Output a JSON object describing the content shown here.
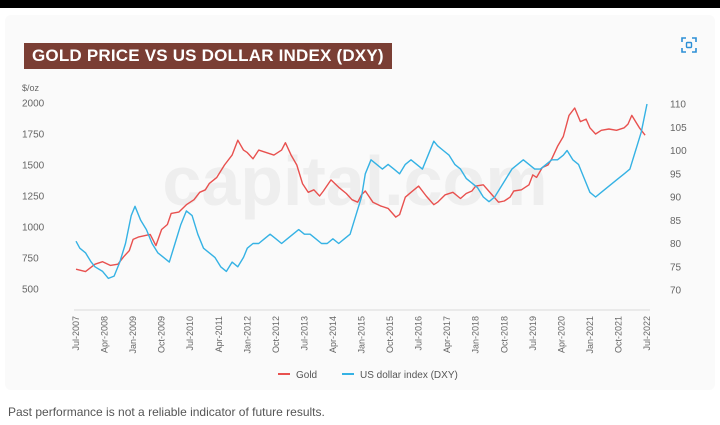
{
  "colors": {
    "gold": "#e8514f",
    "dxy": "#35b2e4",
    "title_bg": "#7a3e34",
    "axis_text": "#666666",
    "watermark": "#e6e6e6"
  },
  "chart_data": {
    "type": "line",
    "title": "GOLD PRICE VS US DOLLAR INDEX (DXY)",
    "left_axis": {
      "unit": "$/oz",
      "ticks": [
        "500",
        "750",
        "1000",
        "1250",
        "1500",
        "1750",
        "2000"
      ],
      "range": [
        500,
        2000
      ]
    },
    "right_axis": {
      "ticks": [
        "70",
        "75",
        "80",
        "85",
        "90",
        "95",
        "100",
        "105",
        "110"
      ],
      "range": [
        70,
        110
      ]
    },
    "x_ticks": [
      "Jul-2007",
      "Apr-2008",
      "Jan-2009",
      "Oct-2009",
      "Jul-2010",
      "Apr-2011",
      "Jan-2012",
      "Oct-2012",
      "Jul-2013",
      "Apr-2014",
      "Jan-2015",
      "Oct-2015",
      "Jul-2016",
      "Apr-2017",
      "Jan-2018",
      "Oct-2018",
      "Jul-2019",
      "Apr-2020",
      "Jan-2021",
      "Oct-2021",
      "Jul-2022"
    ],
    "x_range": [
      2007.5,
      2022.5
    ],
    "legend_position": "bottom",
    "grid": false,
    "series": [
      {
        "name": "Gold",
        "axis": "left",
        "color": "#e8514f",
        "x": [
          2007.5,
          2007.75,
          2008.0,
          2008.2,
          2008.4,
          2008.6,
          2008.75,
          2008.9,
          2009.0,
          2009.15,
          2009.3,
          2009.45,
          2009.6,
          2009.75,
          2009.9,
          2010.0,
          2010.2,
          2010.4,
          2010.6,
          2010.75,
          2010.9,
          2011.0,
          2011.2,
          2011.4,
          2011.6,
          2011.75,
          2011.9,
          2012.0,
          2012.15,
          2012.3,
          2012.5,
          2012.7,
          2012.9,
          2013.0,
          2013.15,
          2013.3,
          2013.45,
          2013.6,
          2013.75,
          2013.9,
          2014.0,
          2014.2,
          2014.4,
          2014.6,
          2014.75,
          2014.9,
          2015.0,
          2015.1,
          2015.3,
          2015.5,
          2015.7,
          2015.9,
          2016.0,
          2016.15,
          2016.3,
          2016.5,
          2016.7,
          2016.9,
          2017.0,
          2017.2,
          2017.4,
          2017.6,
          2017.75,
          2017.9,
          2018.0,
          2018.2,
          2018.4,
          2018.6,
          2018.75,
          2018.9,
          2019.0,
          2019.2,
          2019.4,
          2019.5,
          2019.6,
          2019.75,
          2019.9,
          2020.0,
          2020.15,
          2020.3,
          2020.45,
          2020.6,
          2020.75,
          2020.9,
          2021.0,
          2021.15,
          2021.3,
          2021.5,
          2021.7,
          2021.9,
          2022.0,
          2022.1,
          2022.2,
          2022.3,
          2022.45
        ],
        "y": [
          660,
          640,
          700,
          720,
          690,
          700,
          760,
          810,
          900,
          920,
          930,
          940,
          850,
          980,
          1020,
          1110,
          1120,
          1180,
          1220,
          1280,
          1300,
          1350,
          1400,
          1500,
          1580,
          1700,
          1620,
          1600,
          1550,
          1620,
          1600,
          1580,
          1620,
          1680,
          1580,
          1500,
          1350,
          1280,
          1300,
          1250,
          1290,
          1380,
          1320,
          1270,
          1220,
          1200,
          1260,
          1290,
          1200,
          1170,
          1150,
          1080,
          1100,
          1240,
          1280,
          1330,
          1250,
          1180,
          1200,
          1260,
          1280,
          1230,
          1270,
          1290,
          1330,
          1340,
          1270,
          1200,
          1210,
          1240,
          1290,
          1300,
          1340,
          1420,
          1400,
          1480,
          1500,
          1550,
          1650,
          1730,
          1900,
          1960,
          1850,
          1870,
          1800,
          1750,
          1780,
          1790,
          1780,
          1800,
          1830,
          1900,
          1850,
          1800,
          1740
        ]
      },
      {
        "name": "US dollar index (DXY)",
        "axis": "right",
        "color": "#35b2e4",
        "x": [
          2007.5,
          2007.6,
          2007.75,
          2007.9,
          2008.0,
          2008.2,
          2008.35,
          2008.5,
          2008.65,
          2008.8,
          2008.95,
          2009.05,
          2009.2,
          2009.35,
          2009.5,
          2009.65,
          2009.8,
          2009.95,
          2010.1,
          2010.25,
          2010.4,
          2010.55,
          2010.7,
          2010.85,
          2011.0,
          2011.15,
          2011.3,
          2011.45,
          2011.6,
          2011.75,
          2011.9,
          2012.0,
          2012.15,
          2012.3,
          2012.45,
          2012.6,
          2012.75,
          2012.9,
          2013.05,
          2013.2,
          2013.35,
          2013.5,
          2013.65,
          2013.8,
          2013.95,
          2014.1,
          2014.25,
          2014.4,
          2014.55,
          2014.7,
          2014.85,
          2015.0,
          2015.1,
          2015.25,
          2015.4,
          2015.55,
          2015.7,
          2015.85,
          2016.0,
          2016.15,
          2016.3,
          2016.45,
          2016.6,
          2016.75,
          2016.9,
          2017.0,
          2017.15,
          2017.3,
          2017.45,
          2017.6,
          2017.75,
          2017.9,
          2018.05,
          2018.2,
          2018.35,
          2018.5,
          2018.65,
          2018.8,
          2018.95,
          2019.1,
          2019.25,
          2019.4,
          2019.55,
          2019.7,
          2019.85,
          2020.0,
          2020.15,
          2020.3,
          2020.4,
          2020.55,
          2020.7,
          2020.85,
          2021.0,
          2021.15,
          2021.3,
          2021.45,
          2021.6,
          2021.75,
          2021.9,
          2022.05,
          2022.2,
          2022.35,
          2022.5
        ],
        "y": [
          80.5,
          79,
          78,
          76,
          75,
          74,
          72.5,
          73,
          76,
          80,
          86,
          88,
          85,
          83,
          80,
          78,
          77,
          76,
          80,
          84,
          87,
          86,
          82,
          79,
          78,
          77,
          75,
          74,
          76,
          75,
          77,
          79,
          80,
          80,
          81,
          82,
          81,
          80,
          81,
          82,
          83,
          82,
          82,
          81,
          80,
          80,
          81,
          80,
          81,
          82,
          86,
          90,
          95,
          98,
          97,
          96,
          97,
          96,
          95,
          97,
          98,
          97,
          96,
          99,
          102,
          101,
          100,
          99,
          97,
          96,
          94,
          93,
          92,
          90,
          89,
          90,
          92,
          94,
          96,
          97,
          98,
          97,
          96,
          96,
          97,
          98,
          98,
          99,
          100,
          98,
          97,
          94,
          91,
          90,
          91,
          92,
          93,
          94,
          95,
          96,
          100,
          104,
          110
        ]
      }
    ]
  },
  "header": {
    "title": "GOLD PRICE VS US DOLLAR INDEX (DXY)",
    "expand_icon": "expand-icon"
  },
  "legend": {
    "gold_label": "Gold",
    "dxy_label": "US dollar index (DXY)"
  },
  "watermark": "capital.com",
  "footer": {
    "disclaimer": "Past performance is not a reliable indicator of future results."
  }
}
